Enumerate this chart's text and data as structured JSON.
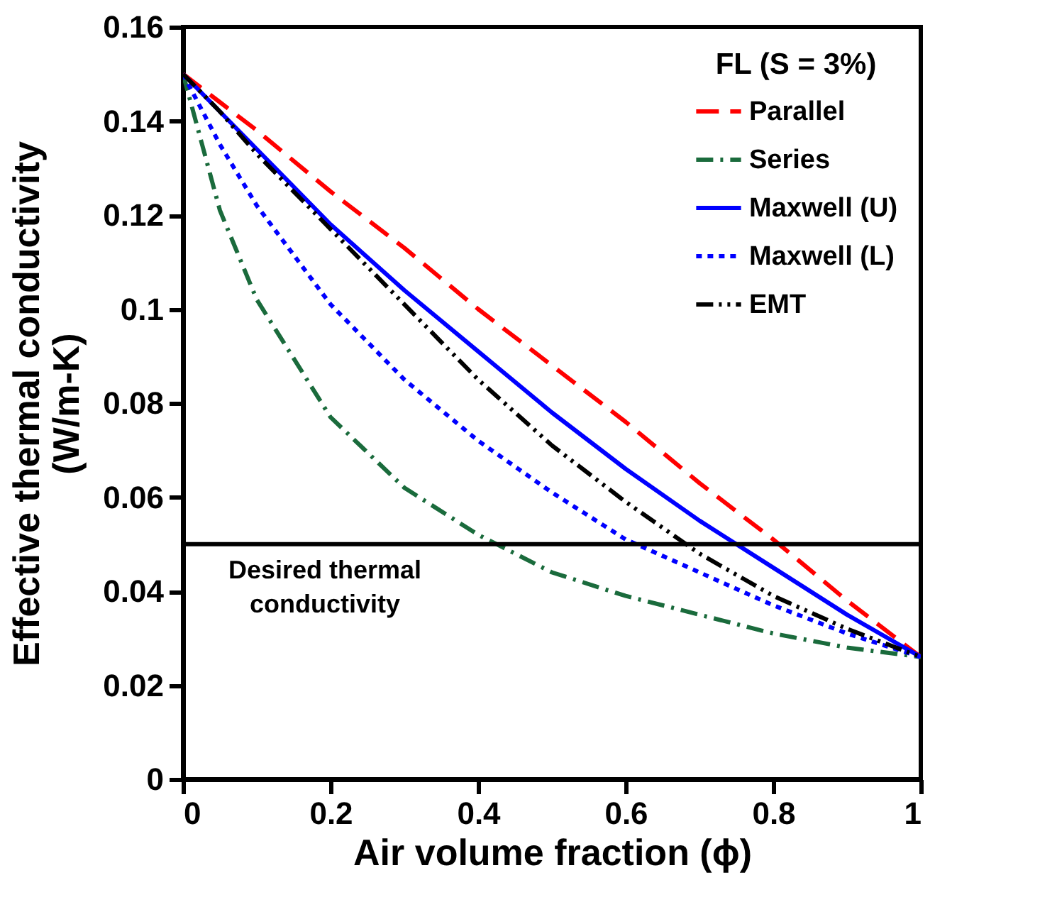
{
  "chart_data": {
    "type": "line",
    "xlabel": "Air volume fraction (ϕ)",
    "ylabel": "Effective thermal conductivity\n(W/m-K)",
    "legend_title": "FL (S = 3%)",
    "x": [
      0,
      0.05,
      0.1,
      0.2,
      0.3,
      0.4,
      0.5,
      0.6,
      0.7,
      0.8,
      0.9,
      1
    ],
    "series": [
      {
        "name": "Parallel",
        "color": "#ff0000",
        "line_style": "dashed",
        "values": [
          0.15,
          0.144,
          0.138,
          0.125,
          0.113,
          0.1,
          0.088,
          0.076,
          0.063,
          0.051,
          0.038,
          0.026
        ]
      },
      {
        "name": "Series",
        "color": "#1a6b3c",
        "line_style": "dashdot",
        "values": [
          0.15,
          0.121,
          0.102,
          0.077,
          0.062,
          0.052,
          0.044,
          0.039,
          0.035,
          0.031,
          0.028,
          0.026
        ]
      },
      {
        "name": "Maxwell (U)",
        "color": "#0000ff",
        "line_style": "solid",
        "values": [
          0.15,
          0.142,
          0.134,
          0.118,
          0.104,
          0.091,
          0.078,
          0.066,
          0.055,
          0.045,
          0.035,
          0.026
        ]
      },
      {
        "name": "Maxwell (L)",
        "color": "#0000ff",
        "line_style": "dotted",
        "values": [
          0.15,
          0.135,
          0.122,
          0.101,
          0.085,
          0.072,
          0.061,
          0.051,
          0.044,
          0.037,
          0.031,
          0.026
        ]
      },
      {
        "name": "EMT",
        "color": "#000000",
        "line_style": "dashdotdot",
        "values": [
          0.15,
          0.142,
          0.133,
          0.117,
          0.101,
          0.085,
          0.071,
          0.059,
          0.048,
          0.039,
          0.032,
          0.026
        ]
      }
    ],
    "xlim": [
      0,
      1
    ],
    "xticks": [
      0,
      0.2,
      0.4,
      0.6,
      0.8,
      1
    ],
    "ylim": [
      0,
      0.16
    ],
    "yticks": [
      0,
      0.02,
      0.04,
      0.06,
      0.08,
      0.1,
      0.12,
      0.14,
      0.16
    ],
    "ref_lines": [
      {
        "axis": "y",
        "value": 0.05,
        "label": "Desired thermal conductivity",
        "color": "#000000"
      }
    ],
    "legend": "top right",
    "grid": false
  }
}
